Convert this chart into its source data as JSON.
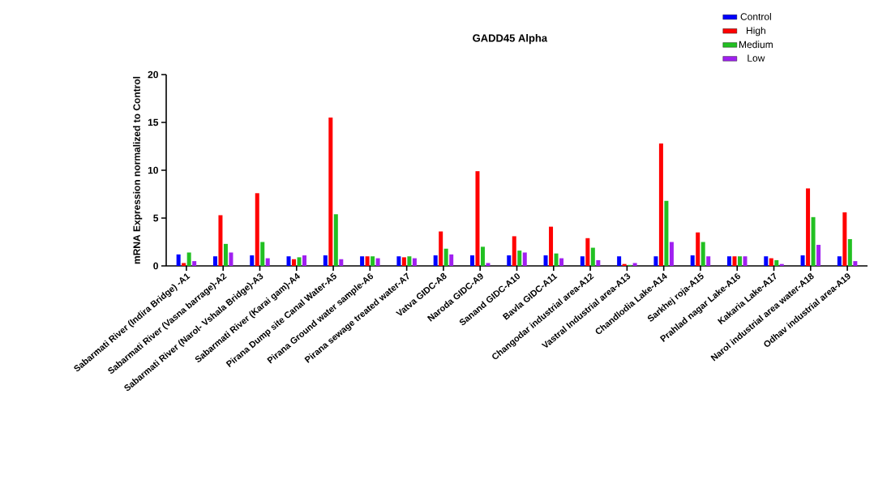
{
  "chart_data": {
    "type": "bar",
    "title": "GADD45 Alpha",
    "ylabel": "mRNA Expression normalized to Control",
    "categories": [
      "Sabarmati River (Indira Bridge) -A1",
      "Sabarmati River (Vasna barrage)-A2",
      "Sabarmati River (Narol- Vshala Bridge)-A3",
      "Sabarmati River (Karai gam)-A4",
      "Pirana Dump site Canal Water-A5",
      "Pirana Ground water sample-A6",
      "Pirana sewage treated water-A7",
      "Vatva GIDC-A8",
      "Naroda GIDC-A9",
      "Sanand GIDC-A10",
      "Bavla GIDC-A11",
      "Changodar industrial area-A12",
      "Vastral Industrial area-A13",
      "Chandlodia Lake-A14",
      "Sarkhej roja-A15",
      "Prahlad nagar Lake-A16",
      "Kakaria Lake-A17",
      "Narol industrial area water-A18",
      "Odhav industrial area-A19"
    ],
    "series": [
      {
        "name": "Control",
        "color": "#0000ff",
        "values": [
          1.2,
          1.0,
          1.1,
          1.0,
          1.1,
          1.0,
          1.0,
          1.1,
          1.1,
          1.1,
          1.1,
          1.0,
          1.0,
          1.0,
          1.1,
          1.0,
          1.0,
          1.1,
          1.0
        ]
      },
      {
        "name": "High",
        "color": "#ff0000",
        "values": [
          0.3,
          5.3,
          7.6,
          0.7,
          15.5,
          1.0,
          0.9,
          3.6,
          9.9,
          3.1,
          4.1,
          2.9,
          0.2,
          12.8,
          3.5,
          1.0,
          0.8,
          8.1,
          5.6
        ]
      },
      {
        "name": "Medium",
        "color": "#22c022",
        "values": [
          1.4,
          2.3,
          2.5,
          0.9,
          5.4,
          1.0,
          1.0,
          1.8,
          2.0,
          1.6,
          1.3,
          1.9,
          0.1,
          6.8,
          2.5,
          1.0,
          0.6,
          5.1,
          2.8
        ]
      },
      {
        "name": "Low",
        "color": "#a020f0",
        "values": [
          0.5,
          1.4,
          0.8,
          1.1,
          0.7,
          0.8,
          0.8,
          1.2,
          0.3,
          1.4,
          0.8,
          0.6,
          0.3,
          2.5,
          1.0,
          1.0,
          0.2,
          2.2,
          0.5
        ]
      }
    ],
    "ylim": [
      0,
      20
    ],
    "yticks": [
      0,
      5,
      10,
      15,
      20
    ],
    "grid": false,
    "legend": "top right"
  }
}
